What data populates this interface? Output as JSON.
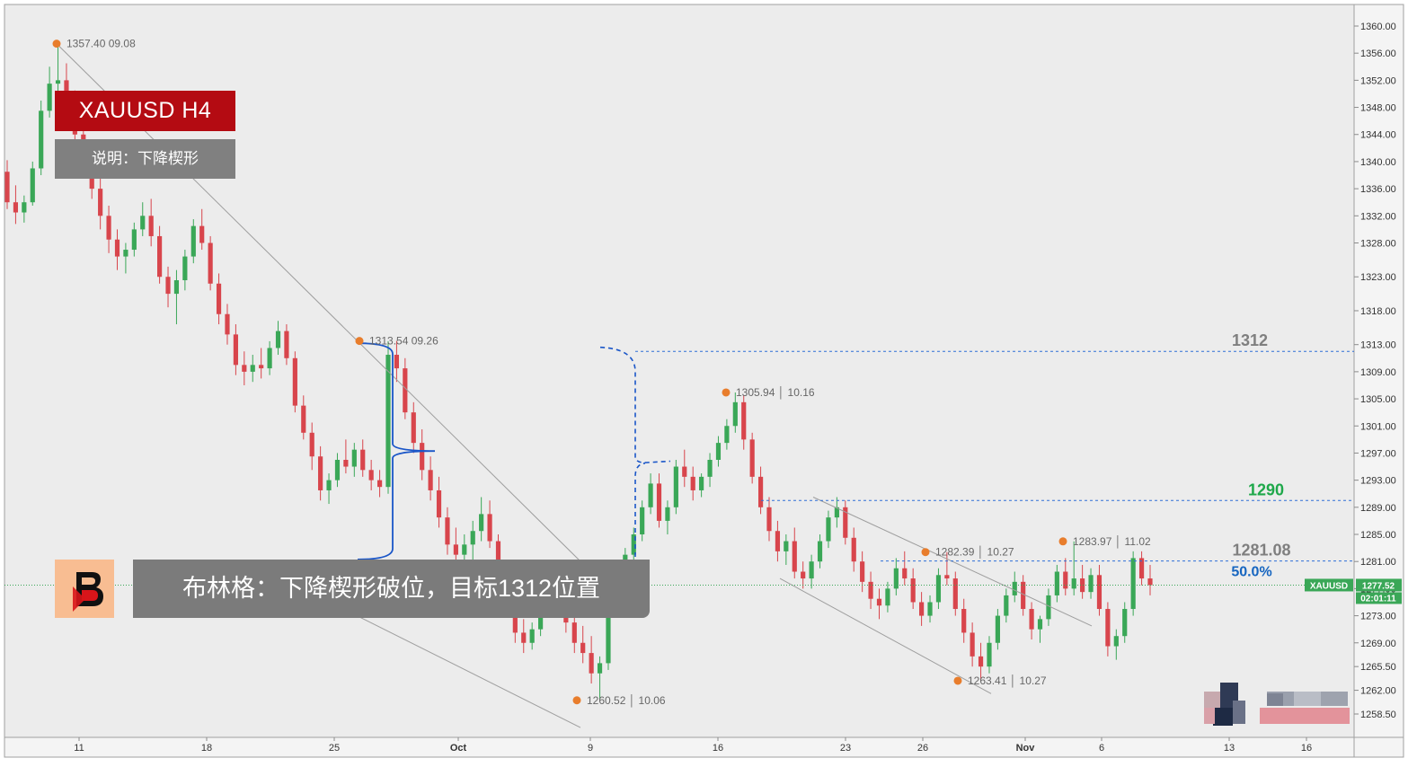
{
  "chart_data": {
    "type": "candlestick",
    "symbol_badge": "XAUUSD",
    "title": "XAUUSD  H4",
    "subtitle": "说明：下降楔形",
    "comment": "布林格：下降楔形破位，目标1312位置",
    "last_price": "1277.52",
    "countdown": "02:01:11",
    "ylim": [
      1256.0,
      1362.0
    ],
    "y_ticks": [
      "1360.00",
      "1356.00",
      "1352.00",
      "1348.00",
      "1344.00",
      "1340.00",
      "1336.00",
      "1332.00",
      "1328.00",
      "1323.00",
      "1318.00",
      "1313.00",
      "1309.00",
      "1305.00",
      "1301.00",
      "1297.00",
      "1293.00",
      "1289.00",
      "1285.00",
      "1281.00",
      "1277.00",
      "1273.00",
      "1269.00",
      "1265.50",
      "1262.00",
      "1258.50"
    ],
    "x_ticks": [
      "11",
      "18",
      "25",
      "Oct",
      "9",
      "16",
      "23",
      "26",
      "Nov",
      "6",
      "13",
      "16"
    ],
    "swing_labels": [
      {
        "price": 1357.4,
        "text": "1357.40   09.08"
      },
      {
        "price": 1313.54,
        "text": "1313.54   09.26"
      },
      {
        "price": 1260.52,
        "text": "1260.52 │ 10.06"
      },
      {
        "price": 1305.94,
        "text": "1305.94 │ 10.16"
      },
      {
        "price": 1282.39,
        "text": "1282.39 │ 10.27"
      },
      {
        "price": 1263.41,
        "text": "1263.41 │ 10.27"
      },
      {
        "price": 1283.97,
        "text": "1283.97 │ 11.02"
      }
    ],
    "levels": [
      {
        "price": 1312.0,
        "label": "1312",
        "color": "#7f7f7f"
      },
      {
        "price": 1290.0,
        "label": "1290",
        "color": "#1ea84a"
      },
      {
        "price": 1281.08,
        "label": "1281.08",
        "color": "#7f7f7f",
        "sub_label": "50.0%",
        "sub_color": "#1565c0"
      }
    ],
    "candles": [
      [
        1338.5,
        1340.2,
        1333.0,
        1334.0
      ],
      [
        1334.0,
        1336.5,
        1330.8,
        1332.5
      ],
      [
        1332.5,
        1335.0,
        1331.0,
        1334.0
      ],
      [
        1334.0,
        1340.0,
        1333.5,
        1339.0
      ],
      [
        1339.0,
        1349.0,
        1338.0,
        1347.5
      ],
      [
        1347.5,
        1354.0,
        1346.5,
        1351.5
      ],
      [
        1351.5,
        1357.4,
        1349.5,
        1352.0
      ],
      [
        1352.0,
        1354.5,
        1348.0,
        1349.0
      ],
      [
        1349.0,
        1350.5,
        1342.5,
        1344.0
      ],
      [
        1344.0,
        1346.0,
        1338.0,
        1340.5
      ],
      [
        1340.5,
        1342.5,
        1334.5,
        1336.0
      ],
      [
        1336.0,
        1337.5,
        1330.0,
        1332.0
      ],
      [
        1332.0,
        1333.5,
        1326.5,
        1328.5
      ],
      [
        1328.5,
        1330.0,
        1324.0,
        1326.0
      ],
      [
        1326.0,
        1328.0,
        1323.5,
        1327.0
      ],
      [
        1327.0,
        1331.0,
        1326.0,
        1330.0
      ],
      [
        1330.0,
        1334.0,
        1329.0,
        1332.0
      ],
      [
        1332.0,
        1334.5,
        1327.5,
        1329.0
      ],
      [
        1329.0,
        1330.5,
        1322.0,
        1323.0
      ],
      [
        1323.0,
        1324.5,
        1318.5,
        1320.5
      ],
      [
        1320.5,
        1324.0,
        1316.0,
        1322.5
      ],
      [
        1322.5,
        1327.0,
        1321.0,
        1326.0
      ],
      [
        1326.0,
        1331.5,
        1325.0,
        1330.5
      ],
      [
        1330.5,
        1333.0,
        1327.0,
        1328.0
      ],
      [
        1328.0,
        1329.0,
        1321.0,
        1322.0
      ],
      [
        1322.0,
        1323.5,
        1316.0,
        1317.5
      ],
      [
        1317.5,
        1319.0,
        1313.0,
        1314.5
      ],
      [
        1314.5,
        1316.0,
        1308.5,
        1310.0
      ],
      [
        1310.0,
        1312.0,
        1307.0,
        1309.0
      ],
      [
        1309.0,
        1311.5,
        1307.5,
        1310.0
      ],
      [
        1310.0,
        1312.5,
        1308.0,
        1309.5
      ],
      [
        1309.5,
        1313.5,
        1308.5,
        1312.5
      ],
      [
        1312.5,
        1316.5,
        1311.5,
        1315.0
      ],
      [
        1315.0,
        1316.0,
        1310.0,
        1311.0
      ],
      [
        1311.0,
        1312.0,
        1303.0,
        1304.0
      ],
      [
        1304.0,
        1305.5,
        1299.0,
        1300.0
      ],
      [
        1300.0,
        1301.5,
        1294.5,
        1296.5
      ],
      [
        1296.5,
        1298.0,
        1290.0,
        1291.5
      ],
      [
        1291.5,
        1294.0,
        1289.5,
        1293.0
      ],
      [
        1293.0,
        1297.0,
        1292.0,
        1296.0
      ],
      [
        1296.0,
        1299.0,
        1294.0,
        1295.0
      ],
      [
        1295.0,
        1298.5,
        1293.5,
        1297.5
      ],
      [
        1297.5,
        1299.0,
        1293.5,
        1294.5
      ],
      [
        1294.5,
        1296.0,
        1291.5,
        1293.0
      ],
      [
        1293.0,
        1294.5,
        1290.5,
        1292.0
      ],
      [
        1292.0,
        1313.5,
        1291.0,
        1311.5
      ],
      [
        1311.5,
        1313.54,
        1307.5,
        1309.5
      ],
      [
        1309.5,
        1311.0,
        1302.0,
        1303.0
      ],
      [
        1303.0,
        1304.5,
        1297.0,
        1298.5
      ],
      [
        1298.5,
        1300.5,
        1293.0,
        1294.5
      ],
      [
        1294.5,
        1296.5,
        1290.0,
        1291.5
      ],
      [
        1291.5,
        1293.5,
        1286.0,
        1287.5
      ],
      [
        1287.5,
        1289.0,
        1282.0,
        1283.5
      ],
      [
        1283.5,
        1286.0,
        1280.0,
        1282.0
      ],
      [
        1282.0,
        1285.0,
        1279.5,
        1283.5
      ],
      [
        1283.5,
        1287.0,
        1281.0,
        1285.5
      ],
      [
        1285.5,
        1290.5,
        1284.0,
        1288.0
      ],
      [
        1288.0,
        1290.0,
        1283.0,
        1284.0
      ],
      [
        1284.0,
        1285.0,
        1278.5,
        1279.5
      ],
      [
        1279.5,
        1281.0,
        1273.5,
        1275.0
      ],
      [
        1275.0,
        1276.0,
        1269.0,
        1270.5
      ],
      [
        1270.5,
        1272.5,
        1267.5,
        1269.0
      ],
      [
        1269.0,
        1272.0,
        1268.0,
        1271.0
      ],
      [
        1271.0,
        1275.5,
        1270.0,
        1274.0
      ],
      [
        1274.0,
        1279.0,
        1273.0,
        1277.5
      ],
      [
        1277.5,
        1280.0,
        1274.0,
        1275.0
      ],
      [
        1275.0,
        1276.5,
        1270.5,
        1272.0
      ],
      [
        1272.0,
        1274.0,
        1267.5,
        1269.0
      ],
      [
        1269.0,
        1271.5,
        1266.0,
        1267.5
      ],
      [
        1267.5,
        1270.0,
        1263.0,
        1264.5
      ],
      [
        1264.5,
        1267.0,
        1260.52,
        1266.0
      ],
      [
        1266.0,
        1276.0,
        1265.0,
        1275.0
      ],
      [
        1275.0,
        1280.0,
        1274.0,
        1279.0
      ],
      [
        1279.0,
        1283.0,
        1278.0,
        1282.0
      ],
      [
        1282.0,
        1286.0,
        1281.0,
        1285.0
      ],
      [
        1285.0,
        1290.0,
        1284.0,
        1289.0
      ],
      [
        1289.0,
        1294.0,
        1288.0,
        1292.5
      ],
      [
        1292.5,
        1294.0,
        1286.0,
        1287.0
      ],
      [
        1287.0,
        1290.0,
        1285.0,
        1289.0
      ],
      [
        1289.0,
        1296.0,
        1288.0,
        1295.0
      ],
      [
        1295.0,
        1297.5,
        1292.0,
        1293.5
      ],
      [
        1293.5,
        1295.0,
        1290.0,
        1291.5
      ],
      [
        1291.5,
        1294.0,
        1290.5,
        1293.5
      ],
      [
        1293.5,
        1297.0,
        1292.0,
        1296.0
      ],
      [
        1296.0,
        1299.5,
        1295.0,
        1298.5
      ],
      [
        1298.5,
        1302.0,
        1297.5,
        1301.0
      ],
      [
        1301.0,
        1305.94,
        1300.0,
        1304.5
      ],
      [
        1304.5,
        1305.5,
        1297.5,
        1299.0
      ],
      [
        1299.0,
        1300.0,
        1292.5,
        1293.5
      ],
      [
        1293.5,
        1295.0,
        1288.0,
        1289.0
      ],
      [
        1289.0,
        1290.5,
        1284.0,
        1285.5
      ],
      [
        1285.5,
        1287.0,
        1281.0,
        1282.5
      ],
      [
        1282.5,
        1285.0,
        1280.5,
        1284.0
      ],
      [
        1284.0,
        1286.0,
        1278.5,
        1279.5
      ],
      [
        1279.5,
        1281.0,
        1277.0,
        1278.5
      ],
      [
        1278.5,
        1282.0,
        1277.0,
        1281.0
      ],
      [
        1281.0,
        1285.0,
        1280.0,
        1284.0
      ],
      [
        1284.0,
        1288.5,
        1283.0,
        1287.5
      ],
      [
        1287.5,
        1290.5,
        1286.0,
        1289.0
      ],
      [
        1289.0,
        1290.0,
        1283.5,
        1284.5
      ],
      [
        1284.5,
        1286.0,
        1279.5,
        1281.0
      ],
      [
        1281.0,
        1282.5,
        1276.5,
        1278.0
      ],
      [
        1278.0,
        1279.5,
        1274.0,
        1275.5
      ],
      [
        1275.5,
        1277.0,
        1272.5,
        1274.5
      ],
      [
        1274.5,
        1278.0,
        1273.5,
        1277.0
      ],
      [
        1277.0,
        1281.5,
        1276.0,
        1280.0
      ],
      [
        1280.0,
        1282.5,
        1277.5,
        1278.5
      ],
      [
        1278.5,
        1280.0,
        1274.0,
        1275.0
      ],
      [
        1275.0,
        1276.5,
        1271.5,
        1273.0
      ],
      [
        1273.0,
        1276.0,
        1272.0,
        1275.0
      ],
      [
        1275.0,
        1280.0,
        1274.0,
        1279.0
      ],
      [
        1279.0,
        1282.39,
        1277.5,
        1278.5
      ],
      [
        1278.5,
        1279.5,
        1273.0,
        1274.0
      ],
      [
        1274.0,
        1275.5,
        1269.0,
        1270.5
      ],
      [
        1270.5,
        1272.0,
        1265.5,
        1267.0
      ],
      [
        1267.0,
        1269.0,
        1263.41,
        1265.5
      ],
      [
        1265.5,
        1270.0,
        1264.5,
        1269.0
      ],
      [
        1269.0,
        1274.0,
        1268.0,
        1273.0
      ],
      [
        1273.0,
        1277.0,
        1272.0,
        1276.0
      ],
      [
        1276.0,
        1279.5,
        1275.0,
        1278.0
      ],
      [
        1278.0,
        1279.0,
        1273.0,
        1274.0
      ],
      [
        1274.0,
        1275.0,
        1269.5,
        1271.0
      ],
      [
        1271.0,
        1273.0,
        1269.0,
        1272.5
      ],
      [
        1272.5,
        1277.0,
        1271.5,
        1276.0
      ],
      [
        1276.0,
        1280.5,
        1275.0,
        1279.5
      ],
      [
        1279.5,
        1281.5,
        1276.0,
        1277.0
      ],
      [
        1277.0,
        1283.97,
        1276.0,
        1278.5
      ],
      [
        1278.5,
        1280.5,
        1275.5,
        1276.5
      ],
      [
        1276.5,
        1280.0,
        1275.5,
        1279.0
      ],
      [
        1279.0,
        1280.5,
        1273.0,
        1274.0
      ],
      [
        1274.0,
        1275.0,
        1267.0,
        1268.5
      ],
      [
        1268.5,
        1271.0,
        1266.5,
        1270.0
      ],
      [
        1270.0,
        1275.0,
        1269.0,
        1274.0
      ],
      [
        1274.0,
        1282.5,
        1273.0,
        1281.5
      ],
      [
        1281.5,
        1282.5,
        1277.5,
        1278.5
      ],
      [
        1278.5,
        1280.5,
        1276.0,
        1277.52
      ]
    ]
  }
}
